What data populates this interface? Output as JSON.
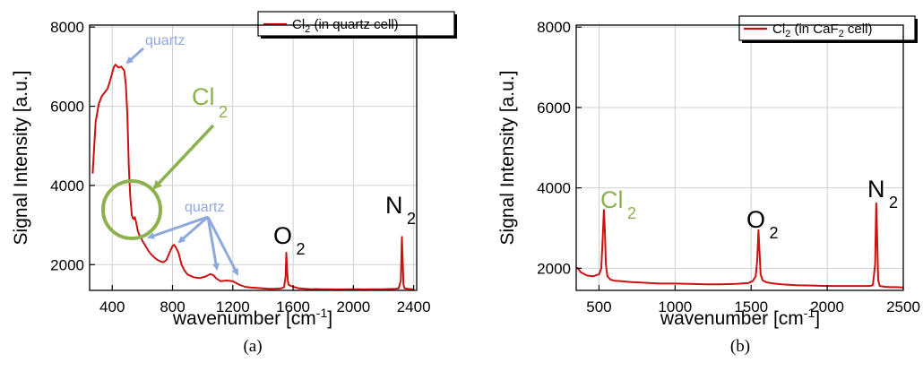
{
  "colors": {
    "series": "#cc1111",
    "annotation_blue": "#8fa9dc",
    "annotation_green": "#8db14f",
    "grid": "#d0d0d0",
    "axis": "#000000"
  },
  "chart_data": [
    {
      "type": "line",
      "panel_label": "(a)",
      "xlabel": "wavenumber [cm",
      "xlabel_sup": "-1",
      "xlabel_end": "]",
      "ylabel": "Signal Intensity [a.u.]",
      "xlim": [
        250,
        2420
      ],
      "ylim": [
        1350,
        8050
      ],
      "xticks": [
        400,
        800,
        1200,
        1600,
        2000,
        2400
      ],
      "xtick_labels": [
        "400",
        "800",
        "1200",
        "1600",
        "2000",
        "2400"
      ],
      "yticks": [
        2000,
        4000,
        6000,
        8000
      ],
      "ytick_labels": [
        "2000",
        "4000",
        "6000",
        "8000"
      ],
      "grid": true,
      "legend_position": "top-right",
      "series": [
        {
          "name": "Cl",
          "name_sub": "2",
          "name_rest": " (in quartz cell)",
          "x": [
            270,
            290,
            310,
            330,
            350,
            370,
            390,
            410,
            420,
            430,
            440,
            460,
            480,
            490,
            500,
            510,
            520,
            530,
            540,
            550,
            560,
            570,
            580,
            590,
            600,
            620,
            640,
            660,
            680,
            700,
            720,
            740,
            760,
            780,
            800,
            810,
            820,
            840,
            860,
            880,
            900,
            940,
            980,
            1020,
            1050,
            1070,
            1090,
            1120,
            1160,
            1200,
            1240,
            1280,
            1320,
            1360,
            1400,
            1440,
            1480,
            1520,
            1540,
            1550,
            1555,
            1560,
            1565,
            1570,
            1580,
            1600,
            1640,
            1680,
            1720,
            1760,
            1800,
            1840,
            1880,
            1920,
            1960,
            2000,
            2040,
            2080,
            2120,
            2160,
            2200,
            2240,
            2280,
            2300,
            2315,
            2322,
            2327,
            2332,
            2340,
            2360,
            2380,
            2400
          ],
          "y": [
            4300,
            5600,
            6050,
            6250,
            6350,
            6450,
            6700,
            6980,
            7050,
            7020,
            6980,
            7000,
            6900,
            6550,
            5800,
            4500,
            3700,
            3250,
            3150,
            3200,
            3050,
            2850,
            2750,
            2700,
            2600,
            2480,
            2350,
            2250,
            2180,
            2120,
            2080,
            2060,
            2120,
            2300,
            2470,
            2500,
            2450,
            2300,
            2000,
            1850,
            1750,
            1680,
            1660,
            1700,
            1760,
            1740,
            1650,
            1580,
            1600,
            1580,
            1500,
            1440,
            1420,
            1410,
            1400,
            1390,
            1390,
            1400,
            1430,
            1700,
            2300,
            1900,
            1600,
            1500,
            1470,
            1440,
            1400,
            1390,
            1380,
            1385,
            1380,
            1380,
            1375,
            1375,
            1380,
            1380,
            1380,
            1375,
            1380,
            1380,
            1380,
            1385,
            1390,
            1400,
            1600,
            2700,
            2100,
            1500,
            1400,
            1390,
            1380,
            1380
          ]
        }
      ],
      "annotations": {
        "quartz_top": "quartz",
        "cl2_main": "Cl",
        "cl2_sub": "2",
        "quartz_mid": "quartz",
        "o2_main": "O",
        "o2_sub": "2",
        "n2_main": "N",
        "n2_sub": "2"
      }
    },
    {
      "type": "line",
      "panel_label": "(b)",
      "xlabel": "wavenumber [cm",
      "xlabel_sup": "-1",
      "xlabel_end": "]",
      "ylabel": "Signal Intensity [a.u.]",
      "xlim": [
        350,
        2500
      ],
      "ylim": [
        1450,
        8050
      ],
      "xticks": [
        500,
        1000,
        1500,
        2000,
        2500
      ],
      "xtick_labels": [
        "500",
        "1000",
        "1500",
        "2000",
        "2500"
      ],
      "yticks": [
        2000,
        4000,
        6000,
        8000
      ],
      "ytick_labels": [
        "2000",
        "4000",
        "6000",
        "8000"
      ],
      "grid": true,
      "legend_position": "top-right",
      "series": [
        {
          "name": "Cl",
          "name_sub": "2",
          "name_rest": " (in CaF",
          "name_sub2": "2",
          "name_rest2": " cell)",
          "x": [
            355,
            380,
            420,
            460,
            500,
            515,
            525,
            532,
            538,
            545,
            555,
            575,
            600,
            650,
            700,
            800,
            900,
            1000,
            1100,
            1200,
            1300,
            1400,
            1480,
            1510,
            1530,
            1540,
            1548,
            1555,
            1562,
            1575,
            1600,
            1650,
            1700,
            1800,
            1900,
            2000,
            2100,
            2200,
            2280,
            2300,
            2315,
            2322,
            2327,
            2335,
            2345,
            2380,
            2420,
            2460,
            2500
          ],
          "y": [
            2020,
            1900,
            1820,
            1800,
            1850,
            2000,
            2800,
            3450,
            3000,
            2100,
            1800,
            1720,
            1690,
            1680,
            1660,
            1640,
            1620,
            1620,
            1610,
            1600,
            1600,
            1610,
            1630,
            1680,
            1800,
            2200,
            2950,
            2400,
            1850,
            1700,
            1650,
            1620,
            1600,
            1580,
            1570,
            1560,
            1560,
            1560,
            1560,
            1580,
            2100,
            3620,
            3000,
            1700,
            1560,
            1540,
            1530,
            1530,
            1520
          ]
        }
      ],
      "annotations": {
        "cl2_main": "Cl",
        "cl2_sub": "2",
        "o2_main": "O",
        "o2_sub": "2",
        "n2_main": "N",
        "n2_sub": "2"
      }
    }
  ]
}
